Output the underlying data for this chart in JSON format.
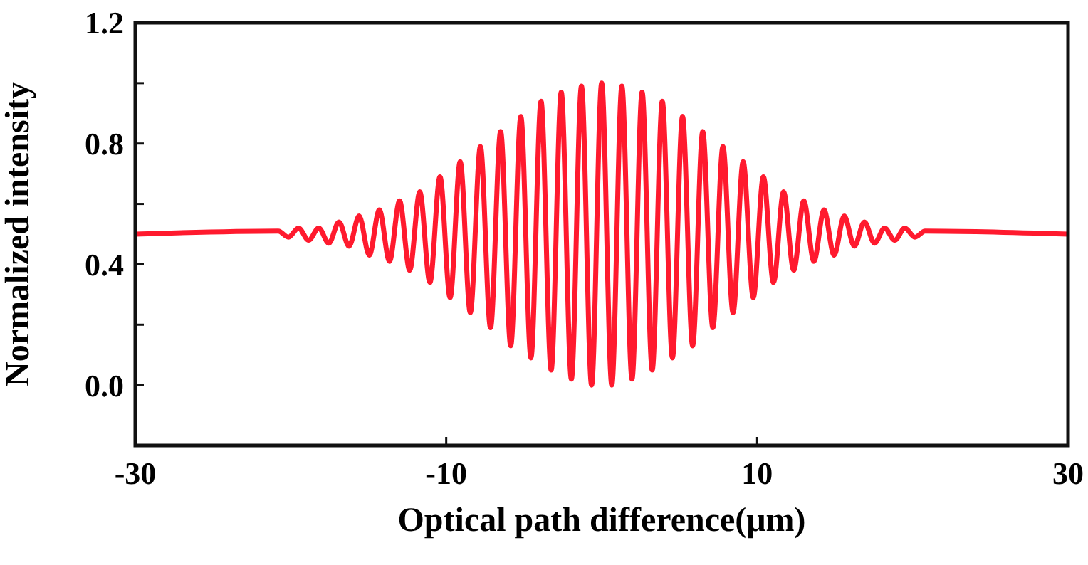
{
  "chart_data": {
    "type": "line",
    "xlabel": "Optical path difference(μm)",
    "ylabel": "Normalized intensity",
    "xlim": [
      -30,
      30
    ],
    "xticks": [
      -30,
      -10,
      10,
      30
    ],
    "ylim": [
      -0.2,
      1.2
    ],
    "yticks": [
      {
        "value": 0,
        "label": "0.0"
      },
      {
        "value": 0.2,
        "label": null
      },
      {
        "value": 0.4,
        "label": "0.4"
      },
      {
        "value": 0.6,
        "label": null
      },
      {
        "value": 0.8,
        "label": "0.8"
      },
      {
        "value": 1.0,
        "label": null
      },
      {
        "value": 1.2,
        "label": "1.2"
      }
    ],
    "grid": false,
    "marker": "none",
    "line_style": "solid",
    "series": [
      {
        "color": "#ff1a2e",
        "x": [
          -30,
          -20.8,
          -20.15,
          -19.5,
          -18.85,
          -18.2,
          -17.55,
          -16.9,
          -16.25,
          -15.6,
          -14.95,
          -14.3,
          -13.65,
          -13,
          -12.35,
          -11.7,
          -11.05,
          -10.4,
          -9.75,
          -9.1,
          -8.45,
          -7.8,
          -7.15,
          -6.5,
          -5.85,
          -5.2,
          -4.55,
          -3.9,
          -3.25,
          -2.6,
          -1.95,
          -1.3,
          -0.65,
          0,
          0.65,
          1.3,
          1.95,
          2.6,
          3.25,
          3.9,
          4.55,
          5.2,
          5.85,
          6.5,
          7.15,
          7.8,
          8.45,
          9.1,
          9.75,
          10.4,
          11.05,
          11.7,
          12.35,
          13,
          13.65,
          14.3,
          14.95,
          15.6,
          16.25,
          16.9,
          17.55,
          18.2,
          18.85,
          19.5,
          20.15,
          20.8,
          30
        ],
        "values": [
          0.5,
          0.51,
          0.49,
          0.52,
          0.48,
          0.52,
          0.47,
          0.54,
          0.46,
          0.56,
          0.43,
          0.58,
          0.41,
          0.61,
          0.38,
          0.64,
          0.34,
          0.69,
          0.29,
          0.74,
          0.24,
          0.79,
          0.19,
          0.84,
          0.13,
          0.89,
          0.09,
          0.94,
          0.05,
          0.97,
          0.02,
          0.99,
          0.0,
          1.0,
          0.0,
          0.99,
          0.02,
          0.97,
          0.05,
          0.94,
          0.09,
          0.89,
          0.13,
          0.84,
          0.19,
          0.79,
          0.24,
          0.74,
          0.29,
          0.69,
          0.34,
          0.64,
          0.38,
          0.61,
          0.41,
          0.58,
          0.43,
          0.56,
          0.46,
          0.54,
          0.47,
          0.52,
          0.48,
          0.52,
          0.49,
          0.51,
          0.5
        ]
      }
    ]
  }
}
